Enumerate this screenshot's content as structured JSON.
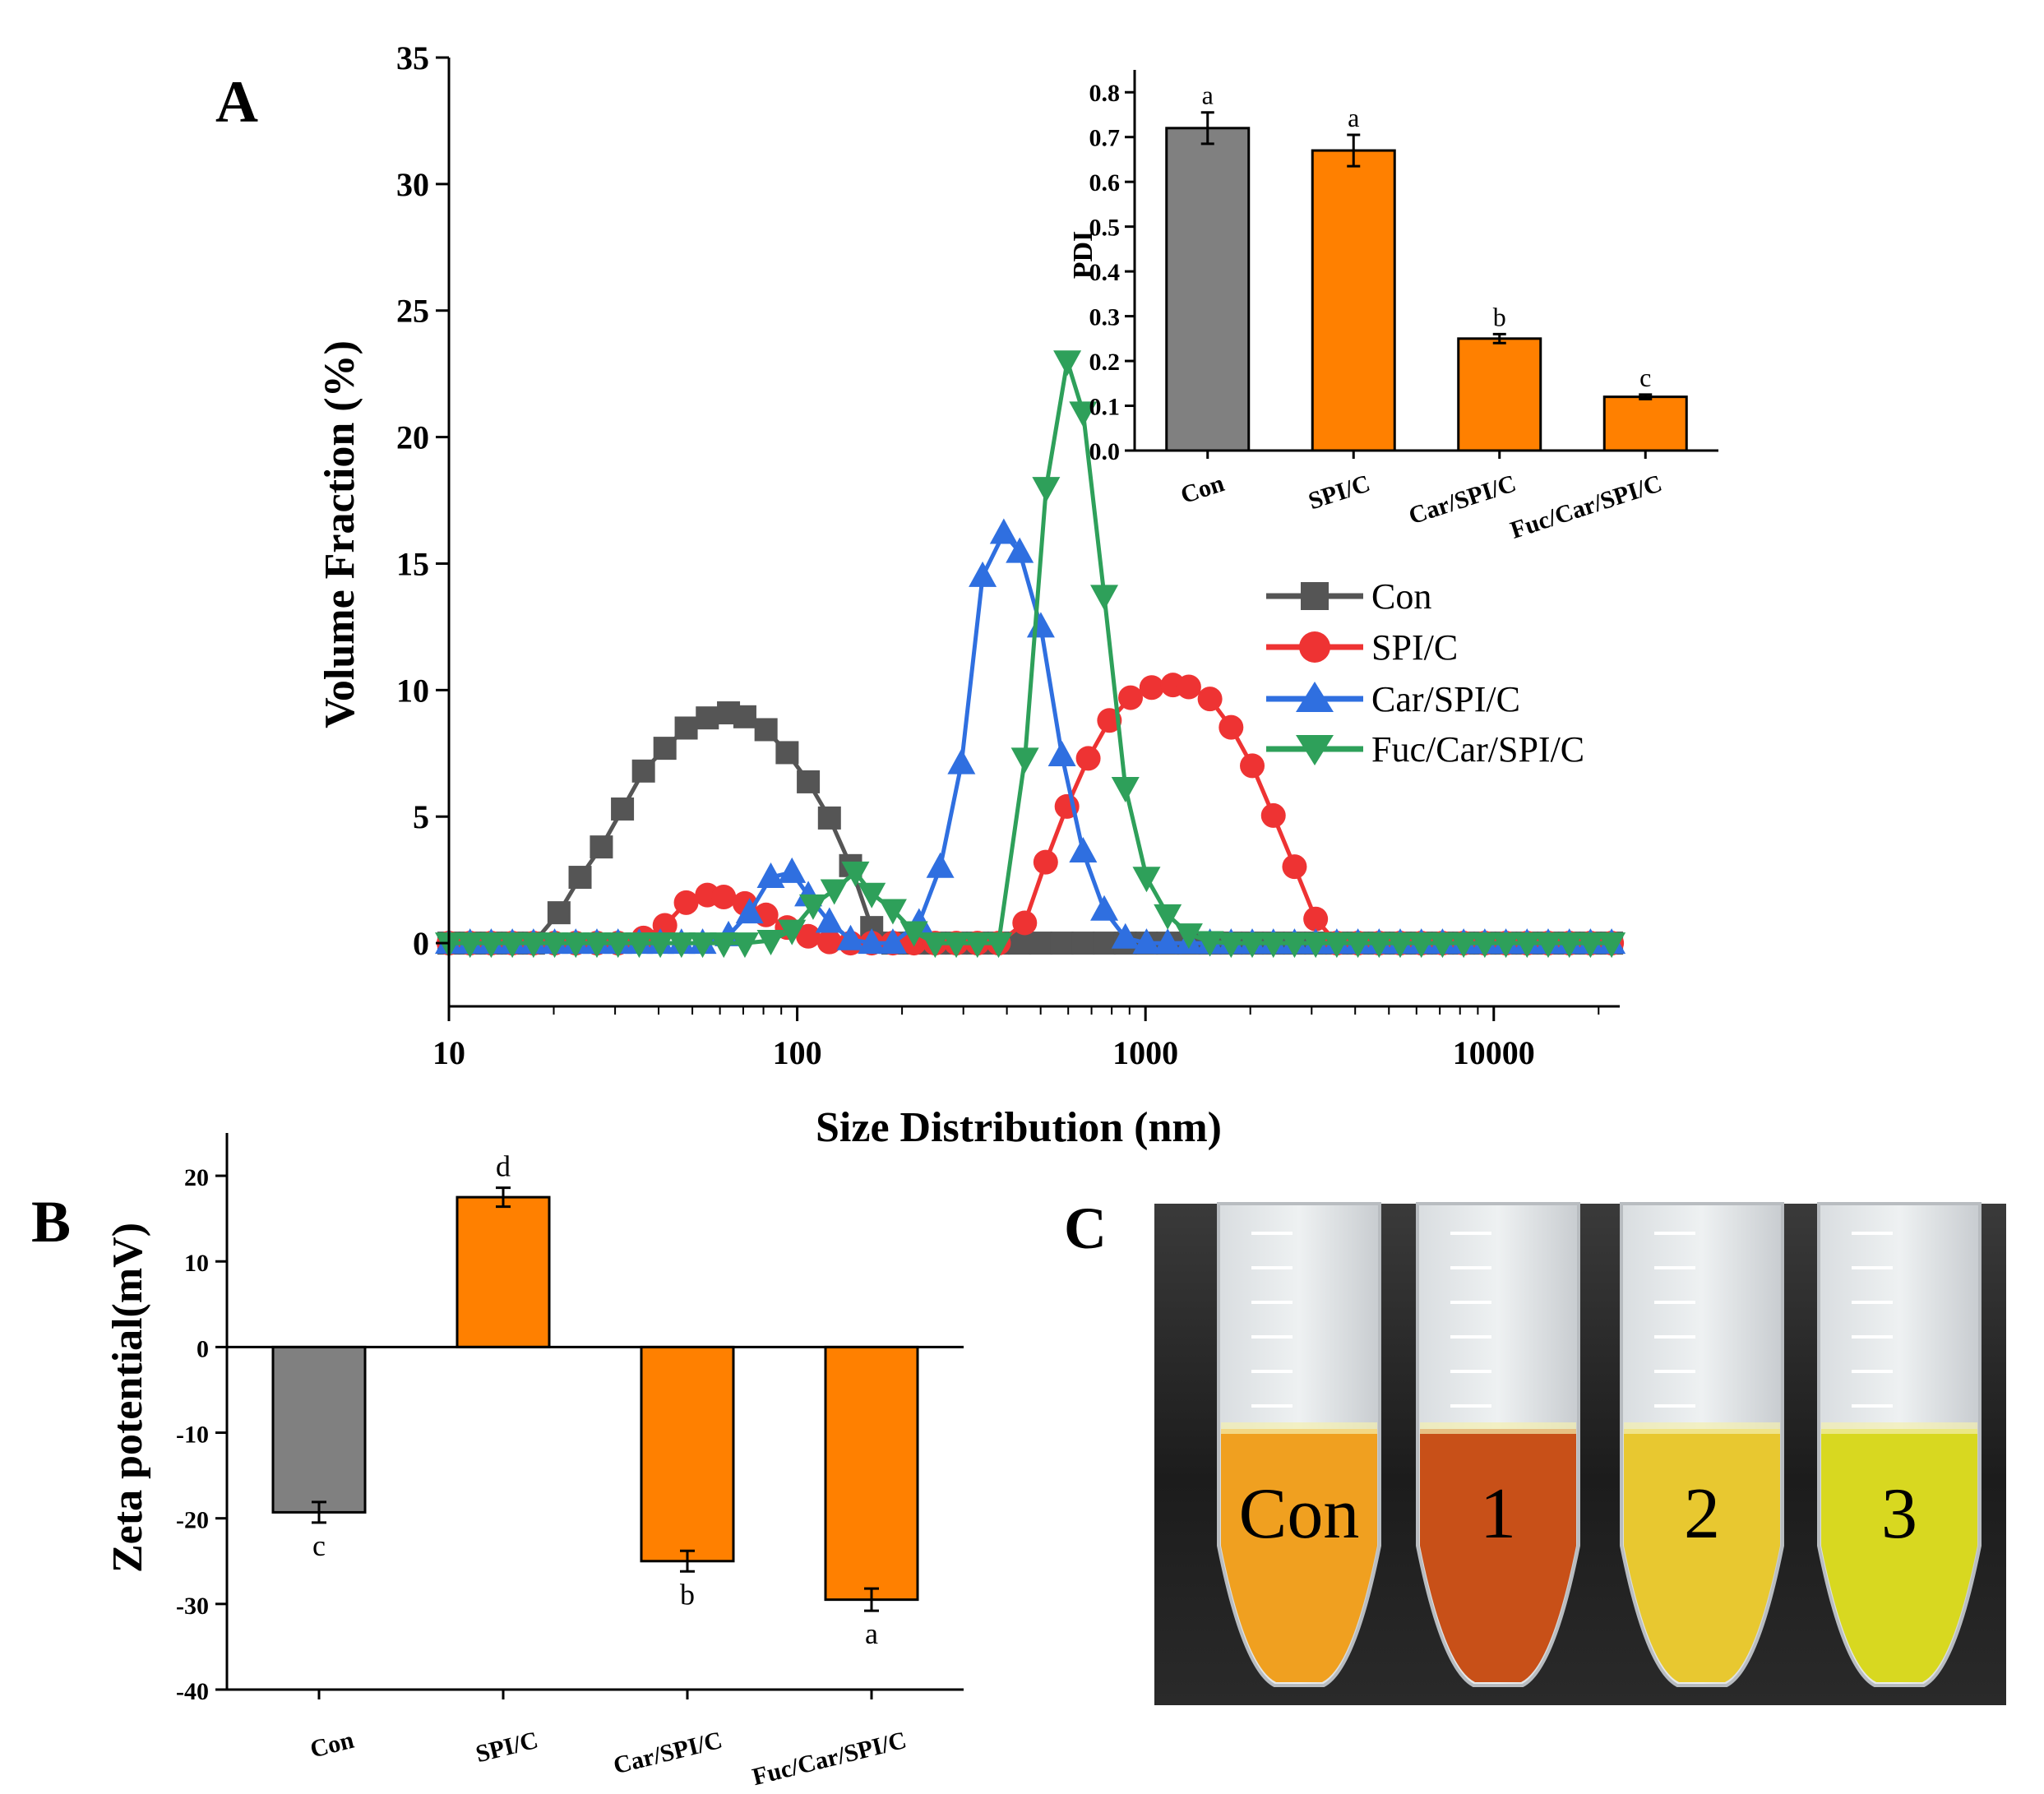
{
  "panels": {
    "A": "A",
    "B": "B",
    "C": "C"
  },
  "colors": {
    "Con": "#555555",
    "SPI/C": "#ee3333",
    "Car/SPI/C": "#2f6fe0",
    "Fuc/Car/SPI/C": "#2ea05a",
    "bar_gray": "#808080",
    "bar_orange": "#ff8000"
  },
  "chart_data": [
    {
      "id": "size-distribution",
      "type": "line",
      "xlabel": "Size Distribution (nm)",
      "ylabel": "Volume Fraction (%)",
      "xscale": "log",
      "xlim": [
        10,
        23000
      ],
      "ylim": [
        -2.5,
        35
      ],
      "xticks": [
        10,
        100,
        1000,
        10000
      ],
      "xtick_labels": [
        "10",
        "100",
        "1000",
        "10000"
      ],
      "yticks": [
        0,
        5,
        10,
        15,
        20,
        25,
        30,
        35
      ],
      "legend_position": "center-right",
      "series": [
        {
          "name": "Con",
          "marker": "square",
          "peak": {
            "x": [
              20.7,
              23.8,
              27.4,
              31.5,
              36.2,
              41.7,
              48.0,
              55.2,
              63.5,
              73.0,
              84.0,
              96.6,
              111.1,
              127.8,
              147.0,
              169.2
            ],
            "y": [
              1.2,
              2.6,
              3.8,
              5.3,
              6.8,
              7.7,
              8.5,
              8.9,
              9.1,
              8.9,
              8.3,
              7.3,
              6.1,
              4.6,
              2.6,
              0.0
            ]
          }
        },
        {
          "name": "SPI/C",
          "marker": "circle",
          "peak": {
            "x": [
              36.2,
              41.7,
              48.0,
              55.2,
              63.5,
              73.0,
              84.0,
              96.6,
              111.1,
              127.8
            ],
            "y": [
              0.2,
              0.7,
              1.6,
              1.9,
              1.8,
              1.5,
              1.0,
              0.5,
              0.2,
              0.0
            ],
            "x2": [
              391,
              450,
              517,
              595,
              685,
              788,
              906,
              1042,
              1199,
              1379,
              1586,
              1825,
              2099,
              2415,
              2778,
              3196
            ],
            "y2": [
              0.0,
              0.8,
              3.2,
              5.4,
              7.3,
              8.8,
              9.7,
              10.1,
              10.2,
              10.1,
              9.5,
              8.2,
              6.6,
              4.5,
              2.5,
              0.4
            ]
          }
        },
        {
          "name": "Car/SPI/C",
          "marker": "triangle-up",
          "peak": {
            "x": [
              63.5,
              73.0,
              84.0,
              96.6,
              111.1,
              127.8,
              147.0
            ],
            "y": [
              0.3,
              1.2,
              2.6,
              2.8,
              1.6,
              0.6,
              0.0
            ],
            "x2": [
              194.6,
              223.8,
              257.5,
              296.2,
              340.7,
              391.9,
              450.8,
              518.5,
              596.4,
              686.0,
              789.0,
              907.6
            ],
            "y2": [
              0.0,
              0.8,
              3.0,
              7.1,
              14.5,
              16.2,
              15.2,
              11.6,
              6.0,
              2.8,
              0.8,
              0.0
            ]
          }
        },
        {
          "name": "Fuc/Car/SPI/C",
          "marker": "triangle-down",
          "peak": {
            "x": [
              84.0,
              96.6,
              111.1,
              127.8,
              147.0,
              169.2,
              194.6,
              223.8
            ],
            "y": [
              0.1,
              0.5,
              1.5,
              2.1,
              2.8,
              1.7,
              1.2,
              0.2
            ],
            "x2": [
              391.9,
              450.8,
              518.5,
              596.4,
              686.0,
              789.0,
              907.6,
              1044.0,
              1201.0,
              1381.0,
              1589.0
            ],
            "y2": [
              0.0,
              7.3,
              18.0,
              23.0,
              20.3,
              11.5,
              4.3,
              2.0,
              0.8,
              0.2,
              0.0
            ]
          }
        }
      ]
    },
    {
      "id": "pdi-inset",
      "type": "bar",
      "ylabel": "PDI",
      "categories": [
        "Con",
        "SPI/C",
        "Car/SPI/C",
        "Fuc/Car/SPI/C"
      ],
      "values": [
        0.72,
        0.67,
        0.25,
        0.12
      ],
      "errors": [
        0.035,
        0.035,
        0.01,
        0.005
      ],
      "labels": [
        "a",
        "a",
        "b",
        "c"
      ],
      "ylim": [
        0,
        0.85
      ],
      "yticks": [
        0.0,
        0.1,
        0.2,
        0.3,
        0.4,
        0.5,
        0.6,
        0.7,
        0.8
      ],
      "ytick_labels": [
        "0.0",
        "0.1",
        "0.2",
        "0.3",
        "0.4",
        "0.5",
        "0.6",
        "0.7",
        "0.8"
      ]
    },
    {
      "id": "zeta-potential",
      "type": "bar",
      "ylabel": "Zeta potential(mV)",
      "categories": [
        "Con",
        "SPI/C",
        "Car/SPI/C",
        "Fuc/Car/SPI/C"
      ],
      "values": [
        -19.3,
        17.5,
        -25.0,
        -29.5
      ],
      "errors": [
        1.2,
        1.1,
        1.2,
        1.3
      ],
      "labels": [
        "c",
        "d",
        "b",
        "a"
      ],
      "ylim": [
        -40,
        25
      ],
      "yticks": [
        -40,
        -30,
        -20,
        -10,
        0,
        10,
        20
      ],
      "ytick_labels": [
        "-40",
        "-30",
        "-20",
        "-10",
        "0",
        "10",
        "20"
      ]
    }
  ],
  "photo": {
    "labels": [
      "Con",
      "1",
      "2",
      "3"
    ],
    "tube_colors": [
      "#f0a020",
      "#c85018",
      "#e8c830",
      "#d8d820"
    ]
  }
}
